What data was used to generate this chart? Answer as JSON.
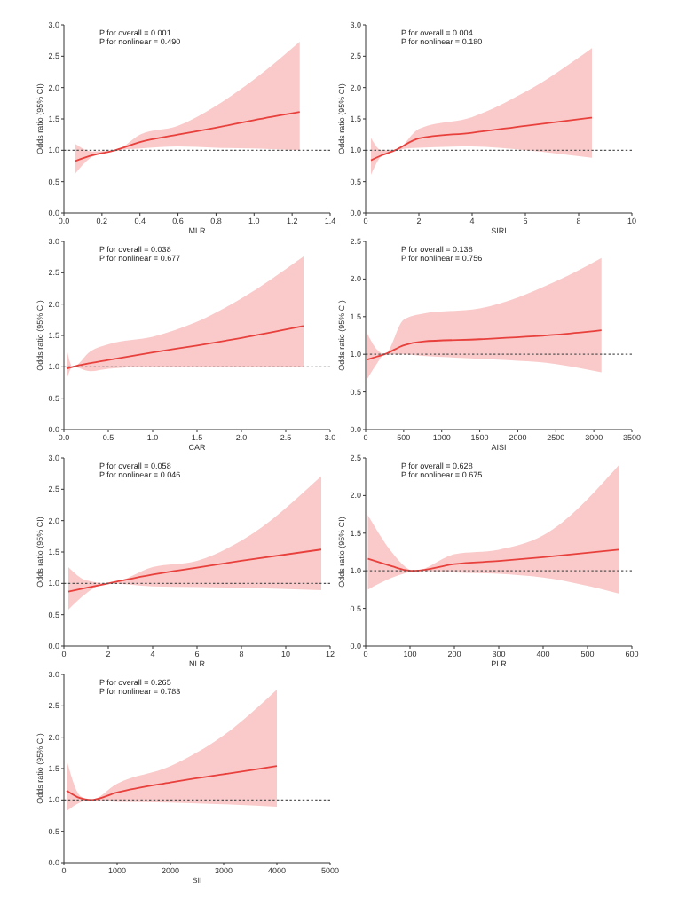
{
  "chart_data": [
    {
      "type": "line",
      "xlabel": "MLR",
      "ylabel": "Odds ratio (95% CI)",
      "xlim": [
        0,
        1.4
      ],
      "xticks": [
        {
          "value": 0,
          "label": "0.0"
        },
        {
          "value": 0.2,
          "label": "0.2"
        },
        {
          "value": 0.4,
          "label": "0.4"
        },
        {
          "value": 0.6,
          "label": "0.6"
        },
        {
          "value": 0.8,
          "label": "0.8"
        },
        {
          "value": 1,
          "label": "1.0"
        },
        {
          "value": 1.2,
          "label": "1.2"
        },
        {
          "value": 1.4,
          "label": "1.4"
        }
      ],
      "ylim": [
        0,
        3
      ],
      "yticks": [
        {
          "value": 0,
          "label": "0.0"
        },
        {
          "value": 0.5,
          "label": "0.5"
        },
        {
          "value": 1,
          "label": "1.0"
        },
        {
          "value": 1.5,
          "label": "1.5"
        },
        {
          "value": 2,
          "label": "2.0"
        },
        {
          "value": 2.5,
          "label": "2.5"
        },
        {
          "value": 3,
          "label": "3.0"
        }
      ],
      "annotations": [
        "P for overall = 0.001",
        "P for nonlinear = 0.490"
      ],
      "ref_lines": [
        {
          "axis": "y",
          "value": 1,
          "line_style": "dotted",
          "color": "#555555"
        }
      ],
      "series": [
        {
          "color": "#e8403c",
          "x": [
            0.06,
            0.15,
            0.27,
            0.4,
            0.6,
            0.8,
            1.0,
            1.24
          ],
          "values": [
            0.83,
            0.92,
            1.0,
            1.13,
            1.25,
            1.36,
            1.48,
            1.61
          ],
          "lower": [
            0.63,
            0.9,
            1.0,
            1.03,
            1.06,
            1.04,
            1.03,
            1.0
          ],
          "upper": [
            1.1,
            0.98,
            1.0,
            1.25,
            1.39,
            1.71,
            2.13,
            2.73
          ]
        }
      ]
    },
    {
      "type": "line",
      "xlabel": "SIRI",
      "ylabel": "Odds ratio (95% CI)",
      "xlim": [
        0,
        10
      ],
      "xticks": [
        0,
        2,
        4,
        6,
        8,
        10
      ],
      "ylim": [
        0,
        3
      ],
      "yticks": [
        {
          "value": 0,
          "label": "0.0"
        },
        {
          "value": 0.5,
          "label": "0.5"
        },
        {
          "value": 1,
          "label": "1.0"
        },
        {
          "value": 1.5,
          "label": "1.5"
        },
        {
          "value": 2,
          "label": "2.0"
        },
        {
          "value": 2.5,
          "label": "2.5"
        },
        {
          "value": 3,
          "label": "3.0"
        }
      ],
      "annotations": [
        "P for overall = 0.004",
        "P for nonlinear = 0.180"
      ],
      "ref_lines": [
        {
          "axis": "y",
          "value": 1,
          "line_style": "dotted",
          "color": "#555555"
        }
      ],
      "series": [
        {
          "color": "#e8403c",
          "x": [
            0.2,
            0.6,
            1.1,
            2,
            4,
            6,
            8.5
          ],
          "values": [
            0.84,
            0.92,
            1.0,
            1.19,
            1.28,
            1.39,
            1.52
          ],
          "lower": [
            0.61,
            0.91,
            1.0,
            1.04,
            1.06,
            1.0,
            0.88
          ],
          "upper": [
            1.2,
            1.0,
            1.0,
            1.34,
            1.53,
            1.93,
            2.63
          ]
        }
      ]
    },
    {
      "type": "line",
      "xlabel": "CAR",
      "ylabel": "Odds ratio (95% CI)",
      "xlim": [
        0,
        3
      ],
      "xticks": [
        {
          "value": 0,
          "label": "0.0"
        },
        {
          "value": 0.5,
          "label": "0.5"
        },
        {
          "value": 1,
          "label": "1.0"
        },
        {
          "value": 1.5,
          "label": "1.5"
        },
        {
          "value": 2,
          "label": "2.0"
        },
        {
          "value": 2.5,
          "label": "2.5"
        },
        {
          "value": 3,
          "label": "3.0"
        }
      ],
      "ylim": [
        0,
        3
      ],
      "yticks": [
        {
          "value": 0,
          "label": "0.0"
        },
        {
          "value": 0.5,
          "label": "0.5"
        },
        {
          "value": 1,
          "label": "1.0"
        },
        {
          "value": 1.5,
          "label": "1.5"
        },
        {
          "value": 2,
          "label": "2.0"
        },
        {
          "value": 2.5,
          "label": "2.5"
        },
        {
          "value": 3,
          "label": "3.0"
        }
      ],
      "annotations": [
        "P for overall = 0.038",
        "P for nonlinear = 0.677"
      ],
      "ref_lines": [
        {
          "axis": "y",
          "value": 1,
          "line_style": "dotted",
          "color": "#555555"
        }
      ],
      "series": [
        {
          "color": "#e8403c",
          "x": [
            0.03,
            0.1,
            0.3,
            0.5,
            1.0,
            1.5,
            2.0,
            2.7
          ],
          "values": [
            0.97,
            1.0,
            1.06,
            1.11,
            1.23,
            1.34,
            1.46,
            1.65
          ],
          "lower": [
            0.79,
            1.0,
            0.93,
            0.97,
            1.0,
            1.0,
            1.0,
            1.0
          ],
          "upper": [
            1.3,
            1.0,
            1.25,
            1.36,
            1.48,
            1.72,
            2.09,
            2.76
          ]
        }
      ]
    },
    {
      "type": "line",
      "xlabel": "AISI",
      "ylabel": "Odds ratio (95% CI)",
      "xlim": [
        0,
        3500
      ],
      "xticks": [
        0,
        500,
        1000,
        1500,
        2000,
        2500,
        3000,
        3500
      ],
      "ylim": [
        0,
        2.5
      ],
      "yticks": [
        {
          "value": 0,
          "label": "0.0"
        },
        {
          "value": 0.5,
          "label": "0.5"
        },
        {
          "value": 1,
          "label": "1.0"
        },
        {
          "value": 1.5,
          "label": "1.5"
        },
        {
          "value": 2,
          "label": "2.0"
        },
        {
          "value": 2.5,
          "label": "2.5"
        }
      ],
      "annotations": [
        "P for overall = 0.138",
        "P for nonlinear = 0.756"
      ],
      "ref_lines": [
        {
          "axis": "y",
          "value": 1,
          "line_style": "dotted",
          "color": "#555555"
        }
      ],
      "series": [
        {
          "color": "#e8403c",
          "x": [
            20,
            150,
            250,
            500,
            750,
            1500,
            2500,
            3100
          ],
          "values": [
            0.93,
            0.97,
            1.0,
            1.12,
            1.17,
            1.2,
            1.26,
            1.32
          ],
          "lower": [
            0.67,
            0.88,
            1.0,
            1.0,
            0.98,
            0.94,
            0.87,
            0.76
          ],
          "upper": [
            1.28,
            1.06,
            1.0,
            1.46,
            1.54,
            1.61,
            1.97,
            2.28
          ]
        }
      ]
    },
    {
      "type": "line",
      "xlabel": "NLR",
      "ylabel": "Odds ratio (95% CI)",
      "xlim": [
        0,
        12
      ],
      "xticks": [
        0,
        2,
        4,
        6,
        8,
        10,
        12
      ],
      "ylim": [
        0,
        3
      ],
      "yticks": [
        {
          "value": 0,
          "label": "0.0"
        },
        {
          "value": 0.5,
          "label": "0.5"
        },
        {
          "value": 1,
          "label": "1.0"
        },
        {
          "value": 1.5,
          "label": "1.5"
        },
        {
          "value": 2,
          "label": "2.0"
        },
        {
          "value": 2.5,
          "label": "2.5"
        },
        {
          "value": 3,
          "label": "3.0"
        }
      ],
      "annotations": [
        "P for overall = 0.058",
        "P for nonlinear = 0.046"
      ],
      "ref_lines": [
        {
          "axis": "y",
          "value": 1,
          "line_style": "dotted",
          "color": "#555555"
        }
      ],
      "series": [
        {
          "color": "#e8403c",
          "x": [
            0.2,
            1,
            2,
            4,
            6,
            8,
            11.6
          ],
          "values": [
            0.87,
            0.93,
            1.0,
            1.14,
            1.25,
            1.36,
            1.54
          ],
          "lower": [
            0.58,
            0.84,
            1.0,
            0.95,
            0.94,
            0.93,
            0.89
          ],
          "upper": [
            1.26,
            1.05,
            1.0,
            1.26,
            1.36,
            1.68,
            2.71
          ]
        }
      ]
    },
    {
      "type": "line",
      "xlabel": "PLR",
      "ylabel": "Odds ratio (95% CI)",
      "xlim": [
        0,
        600
      ],
      "xticks": [
        0,
        100,
        200,
        300,
        400,
        500,
        600
      ],
      "ylim": [
        0,
        2.5
      ],
      "yticks": [
        {
          "value": 0,
          "label": "0.0"
        },
        {
          "value": 0.5,
          "label": "0.5"
        },
        {
          "value": 1,
          "label": "1.0"
        },
        {
          "value": 1.5,
          "label": "1.5"
        },
        {
          "value": 2,
          "label": "2.0"
        },
        {
          "value": 2.5,
          "label": "2.5"
        }
      ],
      "annotations": [
        "P for overall = 0.628",
        "P for nonlinear = 0.675"
      ],
      "ref_lines": [
        {
          "axis": "y",
          "value": 1,
          "line_style": "dotted",
          "color": "#555555"
        }
      ],
      "series": [
        {
          "color": "#e8403c",
          "x": [
            5,
            60,
            90,
            110,
            200,
            300,
            400,
            570
          ],
          "values": [
            1.16,
            1.06,
            1.01,
            1.0,
            1.09,
            1.13,
            1.18,
            1.28
          ],
          "lower": [
            0.75,
            0.91,
            0.97,
            1.0,
            0.98,
            0.96,
            0.91,
            0.7
          ],
          "upper": [
            1.74,
            1.24,
            1.05,
            1.0,
            1.22,
            1.28,
            1.47,
            2.4
          ]
        }
      ]
    },
    {
      "type": "line",
      "xlabel": "SII",
      "ylabel": "Odds ratio (95% CI)",
      "xlim": [
        0,
        5000
      ],
      "xticks": [
        0,
        1000,
        2000,
        3000,
        4000,
        5000
      ],
      "ylim": [
        0,
        3
      ],
      "yticks": [
        {
          "value": 0,
          "label": "0.0"
        },
        {
          "value": 0.5,
          "label": "0.5"
        },
        {
          "value": 1,
          "label": "1.0"
        },
        {
          "value": 1.5,
          "label": "1.5"
        },
        {
          "value": 2,
          "label": "2.0"
        },
        {
          "value": 2.5,
          "label": "2.5"
        },
        {
          "value": 3,
          "label": "3.0"
        }
      ],
      "annotations": [
        "P for overall = 0.265",
        "P for nonlinear = 0.783"
      ],
      "ref_lines": [
        {
          "axis": "y",
          "value": 1,
          "line_style": "dotted",
          "color": "#555555"
        }
      ],
      "series": [
        {
          "color": "#e8403c",
          "x": [
            50,
            300,
            500,
            1000,
            2000,
            3000,
            4000
          ],
          "values": [
            1.15,
            1.03,
            1.0,
            1.12,
            1.28,
            1.41,
            1.54
          ],
          "lower": [
            0.82,
            0.96,
            1.0,
            0.97,
            0.96,
            0.93,
            0.89
          ],
          "upper": [
            1.64,
            1.07,
            1.0,
            1.26,
            1.54,
            2.03,
            2.76
          ]
        }
      ]
    }
  ]
}
